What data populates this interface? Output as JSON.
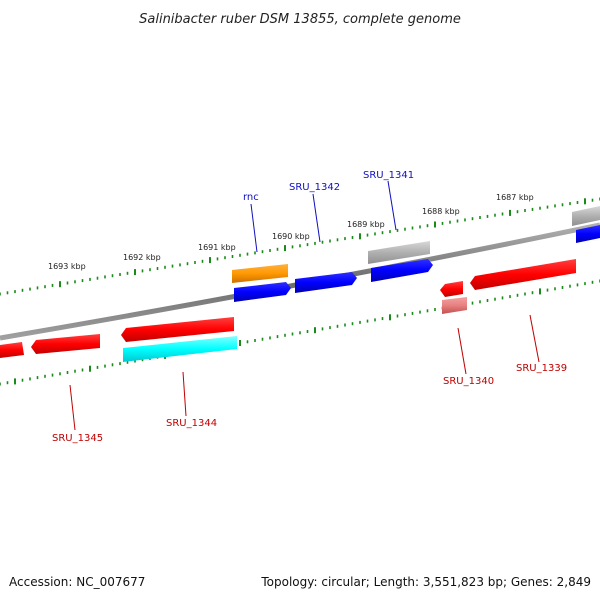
{
  "title": "Salinibacter ruber DSM 13855, complete genome",
  "footer": {
    "accession": "Accession: NC_007677",
    "summary": "Topology: circular; Length: 3,551,823 bp; Genes: 2,849"
  },
  "ticks": [
    "1693 kbp",
    "1692 kbp",
    "1691 kbp",
    "1690 kbp",
    "1689 kbp",
    "1688 kbp",
    "1687 kbp"
  ],
  "gene_labels": {
    "rnc": "rnc",
    "sru1342": "SRU_1342",
    "sru1341": "SRU_1341",
    "sru1345": "SRU_1345",
    "sru1344": "SRU_1344",
    "sru1340": "SRU_1340",
    "sru1339": "SRU_1339"
  },
  "colors": {
    "backbone": "#808080",
    "tick": "#1a8a1a",
    "gene_red": "#ff0000",
    "gene_blue": "#0000ff",
    "gene_orange": "#ff9900",
    "gene_gray": "#b0b0b0",
    "gene_cyan": "#00ffff",
    "gene_pink": "#e88080"
  }
}
